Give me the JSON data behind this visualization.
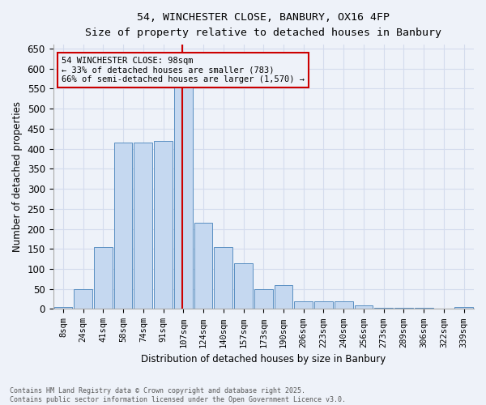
{
  "title1": "54, WINCHESTER CLOSE, BANBURY, OX16 4FP",
  "title2": "Size of property relative to detached houses in Banbury",
  "xlabel": "Distribution of detached houses by size in Banbury",
  "ylabel": "Number of detached properties",
  "annotation_line1": "54 WINCHESTER CLOSE: 98sqm",
  "annotation_line2": "← 33% of detached houses are smaller (783)",
  "annotation_line3": "66% of semi-detached houses are larger (1,570) →",
  "footer1": "Contains HM Land Registry data © Crown copyright and database right 2025.",
  "footer2": "Contains public sector information licensed under the Open Government Licence v3.0.",
  "bar_labels": [
    "8sqm",
    "24sqm",
    "41sqm",
    "58sqm",
    "74sqm",
    "91sqm",
    "107sqm",
    "124sqm",
    "140sqm",
    "157sqm",
    "173sqm",
    "190sqm",
    "206sqm",
    "223sqm",
    "240sqm",
    "256sqm",
    "273sqm",
    "289sqm",
    "306sqm",
    "322sqm",
    "339sqm"
  ],
  "bar_values": [
    5,
    50,
    155,
    415,
    415,
    420,
    610,
    215,
    155,
    115,
    50,
    60,
    20,
    20,
    20,
    10,
    3,
    3,
    3,
    0,
    5
  ],
  "bar_color": "#c5d8f0",
  "bar_edge_color": "#5a8fc2",
  "reference_line_x": 5.95,
  "reference_line_color": "#cc0000",
  "ylim": [
    0,
    660
  ],
  "yticks": [
    0,
    50,
    100,
    150,
    200,
    250,
    300,
    350,
    400,
    450,
    500,
    550,
    600,
    650
  ],
  "bg_color": "#eef2f9",
  "grid_color": "#d4dced",
  "annotation_box_color": "#cc0000"
}
